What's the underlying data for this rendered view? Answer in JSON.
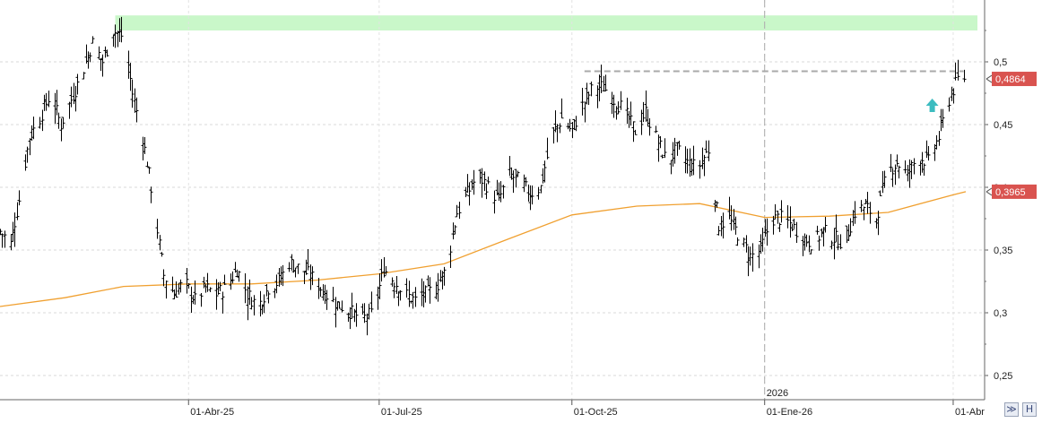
{
  "chart_data": {
    "type": "ohlc-bar",
    "title": "",
    "xlabel": "",
    "ylabel": "",
    "grid": true,
    "ylim": [
      0.23,
      0.55
    ],
    "y_ticks": [
      0.25,
      0.3,
      0.35,
      0.4,
      0.45,
      0.5
    ],
    "y_tick_labels": [
      "0,25",
      "0,3",
      "0,35",
      "0,4",
      "0,45",
      "0,5"
    ],
    "x_tick_labels": [
      "01-Abr-25",
      "01-Jul-25",
      "01-Oct-25",
      "01-Ene-26",
      "01-Abr"
    ],
    "x_tick_dates": [
      "2025-04-01",
      "2025-07-01",
      "2025-10-01",
      "2026-01-01",
      "2026-04-01"
    ],
    "year_marker": {
      "label": "2026",
      "date": "2026-01-01"
    },
    "last_price": {
      "label": "0,4864",
      "value": 0.4864,
      "color": "#d9534f"
    },
    "moving_average_value": {
      "label": "0,3965",
      "value": 0.3965,
      "color": "#d9534f"
    },
    "resistance_line": {
      "value": 0.4925,
      "from": "2025-10-07",
      "to": "2026-04-06",
      "color": "#aaaaaa"
    },
    "highlight_zone": {
      "from": 0.525,
      "to": 0.537,
      "color": "#c9f7c9"
    },
    "buy_arrow": {
      "date": "2026-03-22",
      "value": 0.465,
      "color": "#3cbcc0"
    },
    "series": [
      {
        "kind": "price-bars",
        "color": "#000000",
        "points": [
          [
            "2025-01-01",
            0.365
          ],
          [
            "2025-01-06",
            0.355
          ],
          [
            "2025-01-10",
            0.39
          ],
          [
            "2025-01-15",
            0.44
          ],
          [
            "2025-01-20",
            0.455
          ],
          [
            "2025-01-25",
            0.475
          ],
          [
            "2025-01-30",
            0.45
          ],
          [
            "2025-02-04",
            0.47
          ],
          [
            "2025-02-09",
            0.49
          ],
          [
            "2025-02-14",
            0.515
          ],
          [
            "2025-02-19",
            0.5
          ],
          [
            "2025-02-24",
            0.525
          ],
          [
            "2025-03-01",
            0.52
          ],
          [
            "2025-03-05",
            0.475
          ],
          [
            "2025-03-10",
            0.44
          ],
          [
            "2025-03-15",
            0.39
          ],
          [
            "2025-03-20",
            0.33
          ],
          [
            "2025-03-25",
            0.315
          ],
          [
            "2025-03-30",
            0.325
          ],
          [
            "2025-04-04",
            0.31
          ],
          [
            "2025-04-09",
            0.32
          ],
          [
            "2025-04-14",
            0.315
          ],
          [
            "2025-04-19",
            0.32
          ],
          [
            "2025-04-24",
            0.335
          ],
          [
            "2025-04-29",
            0.315
          ],
          [
            "2025-05-04",
            0.305
          ],
          [
            "2025-05-09",
            0.32
          ],
          [
            "2025-05-14",
            0.325
          ],
          [
            "2025-05-19",
            0.34
          ],
          [
            "2025-05-24",
            0.335
          ],
          [
            "2025-05-29",
            0.33
          ],
          [
            "2025-06-03",
            0.32
          ],
          [
            "2025-06-08",
            0.31
          ],
          [
            "2025-06-13",
            0.305
          ],
          [
            "2025-06-18",
            0.3
          ],
          [
            "2025-06-23",
            0.295
          ],
          [
            "2025-06-28",
            0.3
          ],
          [
            "2025-07-03",
            0.335
          ],
          [
            "2025-07-08",
            0.325
          ],
          [
            "2025-07-13",
            0.315
          ],
          [
            "2025-07-18",
            0.31
          ],
          [
            "2025-07-23",
            0.315
          ],
          [
            "2025-07-28",
            0.32
          ],
          [
            "2025-08-02",
            0.335
          ],
          [
            "2025-08-07",
            0.38
          ],
          [
            "2025-08-12",
            0.395
          ],
          [
            "2025-08-17",
            0.41
          ],
          [
            "2025-08-22",
            0.4
          ],
          [
            "2025-08-27",
            0.39
          ],
          [
            "2025-09-01",
            0.41
          ],
          [
            "2025-09-06",
            0.405
          ],
          [
            "2025-09-11",
            0.395
          ],
          [
            "2025-09-16",
            0.4
          ],
          [
            "2025-09-21",
            0.44
          ],
          [
            "2025-09-26",
            0.455
          ],
          [
            "2025-10-01",
            0.445
          ],
          [
            "2025-10-06",
            0.465
          ],
          [
            "2025-10-11",
            0.48
          ],
          [
            "2025-10-16",
            0.48
          ],
          [
            "2025-10-21",
            0.47
          ],
          [
            "2025-10-26",
            0.46
          ],
          [
            "2025-10-31",
            0.445
          ],
          [
            "2025-11-05",
            0.46
          ],
          [
            "2025-11-10",
            0.44
          ],
          [
            "2025-11-15",
            0.42
          ],
          [
            "2025-11-20",
            0.43
          ],
          [
            "2025-11-25",
            0.42
          ],
          [
            "2025-11-30",
            0.415
          ],
          [
            "2025-12-05",
            0.43
          ],
          [
            "2025-12-10",
            0.37
          ],
          [
            "2025-12-15",
            0.375
          ],
          [
            "2025-12-20",
            0.36
          ],
          [
            "2025-12-25",
            0.345
          ],
          [
            "2025-12-30",
            0.35
          ],
          [
            "2026-01-04",
            0.375
          ],
          [
            "2026-01-09",
            0.375
          ],
          [
            "2026-01-14",
            0.37
          ],
          [
            "2026-01-19",
            0.36
          ],
          [
            "2026-01-24",
            0.355
          ],
          [
            "2026-01-29",
            0.365
          ],
          [
            "2026-02-03",
            0.36
          ],
          [
            "2026-02-08",
            0.355
          ],
          [
            "2026-02-13",
            0.38
          ],
          [
            "2026-02-18",
            0.385
          ],
          [
            "2026-02-23",
            0.375
          ],
          [
            "2026-02-28",
            0.41
          ],
          [
            "2026-03-05",
            0.42
          ],
          [
            "2026-03-10",
            0.41
          ],
          [
            "2026-03-15",
            0.425
          ],
          [
            "2026-03-20",
            0.42
          ],
          [
            "2026-03-25",
            0.44
          ],
          [
            "2026-03-30",
            0.47
          ],
          [
            "2026-04-04",
            0.49
          ],
          [
            "2026-04-07",
            0.4864
          ]
        ]
      },
      {
        "kind": "moving-average",
        "color": "#f0a030",
        "points": [
          [
            "2025-01-01",
            0.305
          ],
          [
            "2025-02-01",
            0.312
          ],
          [
            "2025-03-01",
            0.321
          ],
          [
            "2025-04-01",
            0.323
          ],
          [
            "2025-05-01",
            0.323
          ],
          [
            "2025-06-01",
            0.326
          ],
          [
            "2025-07-01",
            0.331
          ],
          [
            "2025-08-01",
            0.339
          ],
          [
            "2025-09-01",
            0.359
          ],
          [
            "2025-10-01",
            0.378
          ],
          [
            "2025-11-01",
            0.385
          ],
          [
            "2025-12-01",
            0.387
          ],
          [
            "2026-01-01",
            0.376
          ],
          [
            "2026-02-01",
            0.377
          ],
          [
            "2026-03-01",
            0.38
          ],
          [
            "2026-04-01",
            0.394
          ],
          [
            "2026-04-07",
            0.3965
          ]
        ]
      }
    ]
  },
  "ui": {
    "collapse_icon": "double-chevron-down-icon",
    "collapse_glyph": "≫",
    "hold_icon": "letter-h-icon",
    "hold_glyph": "H"
  }
}
